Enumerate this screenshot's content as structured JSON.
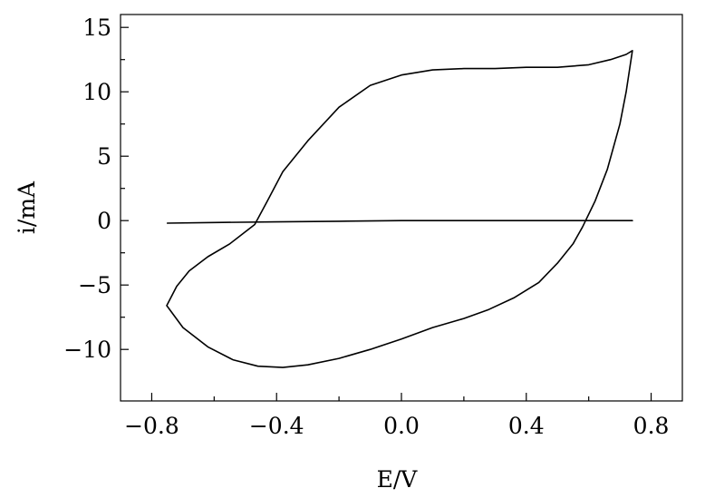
{
  "chart_data": {
    "type": "line",
    "title": "",
    "xlabel": "E/V",
    "ylabel": "i/mA",
    "xlim": [
      -0.9,
      0.9
    ],
    "ylim": [
      -14,
      16
    ],
    "xticks": [
      -0.8,
      -0.4,
      0.0,
      0.4,
      0.8
    ],
    "xtick_labels": [
      "−0.8",
      "−0.4",
      "0.0",
      "0.4",
      "0.8"
    ],
    "yticks": [
      -10,
      -5,
      0,
      5,
      10,
      15
    ],
    "ytick_labels": [
      "−10",
      "−5",
      "0",
      "5",
      "10",
      "15"
    ],
    "grid": false,
    "legend": "none",
    "line_color": "#000000",
    "series": [
      {
        "x": [
          -0.75,
          -0.6,
          -0.4,
          -0.2,
          0.0,
          0.2,
          0.4,
          0.6,
          0.74
        ],
        "y": [
          -0.2,
          -0.15,
          -0.1,
          -0.05,
          0.0,
          0.0,
          0.0,
          0.0,
          0.0
        ]
      },
      {
        "x": [
          -0.752,
          -0.72,
          -0.68,
          -0.62,
          -0.55,
          -0.47,
          -0.43,
          -0.38,
          -0.3,
          -0.2,
          -0.1,
          0.0,
          0.1,
          0.2,
          0.3,
          0.4,
          0.5,
          0.6,
          0.67,
          0.72,
          0.74,
          0.72,
          0.7,
          0.66,
          0.62,
          0.58,
          0.55,
          0.5,
          0.44,
          0.36,
          0.28,
          0.2,
          0.1,
          0.0,
          -0.1,
          -0.2,
          -0.3,
          -0.38,
          -0.46,
          -0.54,
          -0.62,
          -0.7,
          -0.752
        ],
        "y": [
          -6.6,
          -5.1,
          -3.9,
          -2.8,
          -1.8,
          -0.3,
          1.5,
          3.8,
          6.2,
          8.8,
          10.5,
          11.3,
          11.7,
          11.8,
          11.8,
          11.9,
          11.9,
          12.1,
          12.5,
          12.9,
          13.2,
          10.0,
          7.5,
          4.0,
          1.5,
          -0.5,
          -1.8,
          -3.3,
          -4.8,
          -6.0,
          -6.9,
          -7.6,
          -8.3,
          -9.2,
          -10.0,
          -10.7,
          -11.2,
          -11.4,
          -11.3,
          -10.8,
          -9.8,
          -8.3,
          -6.6
        ]
      }
    ]
  }
}
